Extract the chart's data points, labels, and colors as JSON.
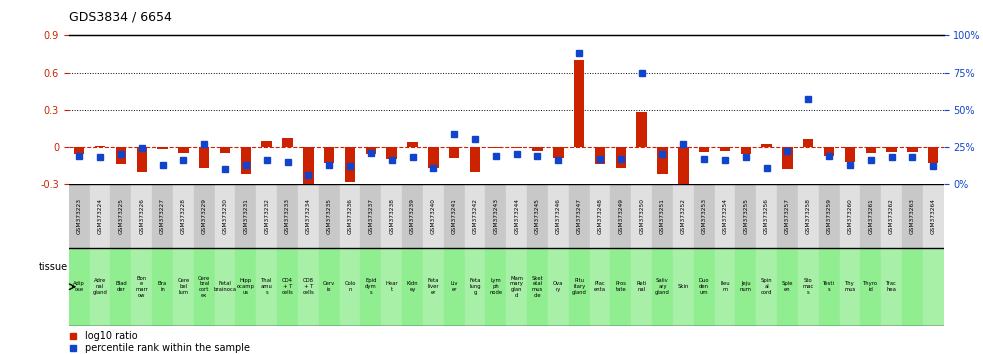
{
  "title": "GDS3834 / 6654",
  "gsm_labels": [
    "GSM373223",
    "GSM373224",
    "GSM373225",
    "GSM373226",
    "GSM373227",
    "GSM373228",
    "GSM373229",
    "GSM373230",
    "GSM373231",
    "GSM373232",
    "GSM373233",
    "GSM373234",
    "GSM373235",
    "GSM373236",
    "GSM373237",
    "GSM373238",
    "GSM373239",
    "GSM373240",
    "GSM373241",
    "GSM373242",
    "GSM373243",
    "GSM373244",
    "GSM373245",
    "GSM373246",
    "GSM373247",
    "GSM373248",
    "GSM373249",
    "GSM373250",
    "GSM373251",
    "GSM373252",
    "GSM373253",
    "GSM373254",
    "GSM373255",
    "GSM373256",
    "GSM373257",
    "GSM373258",
    "GSM373259",
    "GSM373260",
    "GSM373261",
    "GSM373262",
    "GSM373263",
    "GSM373264"
  ],
  "tissue_labels": [
    "Adip\nose",
    "Adre\nnal\ngland",
    "Blad\nder",
    "Bon\ne\nmarr\now",
    "Bra\nin",
    "Cere\nbel\nlum",
    "Cere\nbral\ncort\nex",
    "Fetal\nbrainoca",
    "Hipp\nocamp\nus",
    "Thal\namu\ns",
    "CD4\n+ T\ncells",
    "CD8\n+ T\ncells",
    "Cerv\nix",
    "Colo\nn",
    "Epid\ndym\ns",
    "Hear\nt",
    "Kidn\ney",
    "Feta\nliver\ner",
    "Liv\ner",
    "Feta\nlung\ng",
    "Lym\nph\nnode",
    "Mam\nmary\nglan\nd",
    "Sket\netal\nmus\ncle",
    "Ova\nry",
    "Pitu\nitary\ngland",
    "Plac\nenta",
    "Pros\ntate",
    "Reti\nnal",
    "Saliv\nary\ngland",
    "Skin",
    "Duo\nden\num",
    "Ileu\nm",
    "Jeju\nnum",
    "Spin\nal\ncord",
    "Sple\nen",
    "Sto\nmac\ns",
    "Testi\ns",
    "Thy\nmus",
    "Thyro\nid",
    "Trac\nhea"
  ],
  "log10_ratio": [
    -0.06,
    0.01,
    -0.14,
    -0.2,
    -0.02,
    -0.05,
    -0.17,
    -0.05,
    -0.22,
    0.05,
    0.07,
    -0.3,
    -0.13,
    -0.28,
    -0.06,
    -0.1,
    0.04,
    -0.17,
    -0.09,
    -0.2,
    -0.01,
    -0.01,
    -0.03,
    -0.09,
    0.7,
    -0.14,
    -0.17,
    0.28,
    -0.22,
    -0.3,
    -0.04,
    -0.03,
    -0.06,
    0.02,
    -0.18,
    0.06,
    -0.07,
    -0.12,
    -0.05,
    -0.04,
    -0.04,
    -0.13
  ],
  "percentile_rank": [
    0.19,
    0.18,
    0.2,
    0.24,
    0.13,
    0.16,
    0.27,
    0.1,
    0.13,
    0.16,
    0.15,
    0.06,
    0.13,
    0.12,
    0.21,
    0.16,
    0.18,
    0.11,
    0.34,
    0.3,
    0.19,
    0.2,
    0.19,
    0.16,
    0.88,
    0.17,
    0.17,
    0.75,
    0.2,
    0.27,
    0.17,
    0.16,
    0.18,
    0.11,
    0.22,
    0.57,
    0.19,
    0.13,
    0.16,
    0.18,
    0.18,
    0.12
  ],
  "ylim_left": [
    -0.3,
    0.9
  ],
  "ylim_right": [
    0,
    100
  ],
  "bar_color": "#CC2200",
  "dot_color": "#1144CC",
  "bg_color_gsm": "#D0D0D0",
  "bg_color_tissue_even": "#90EE90",
  "bg_color_tissue_odd": "#AAEAAA",
  "hline_color": "#CC2200",
  "dotted_line_color": "#000000"
}
